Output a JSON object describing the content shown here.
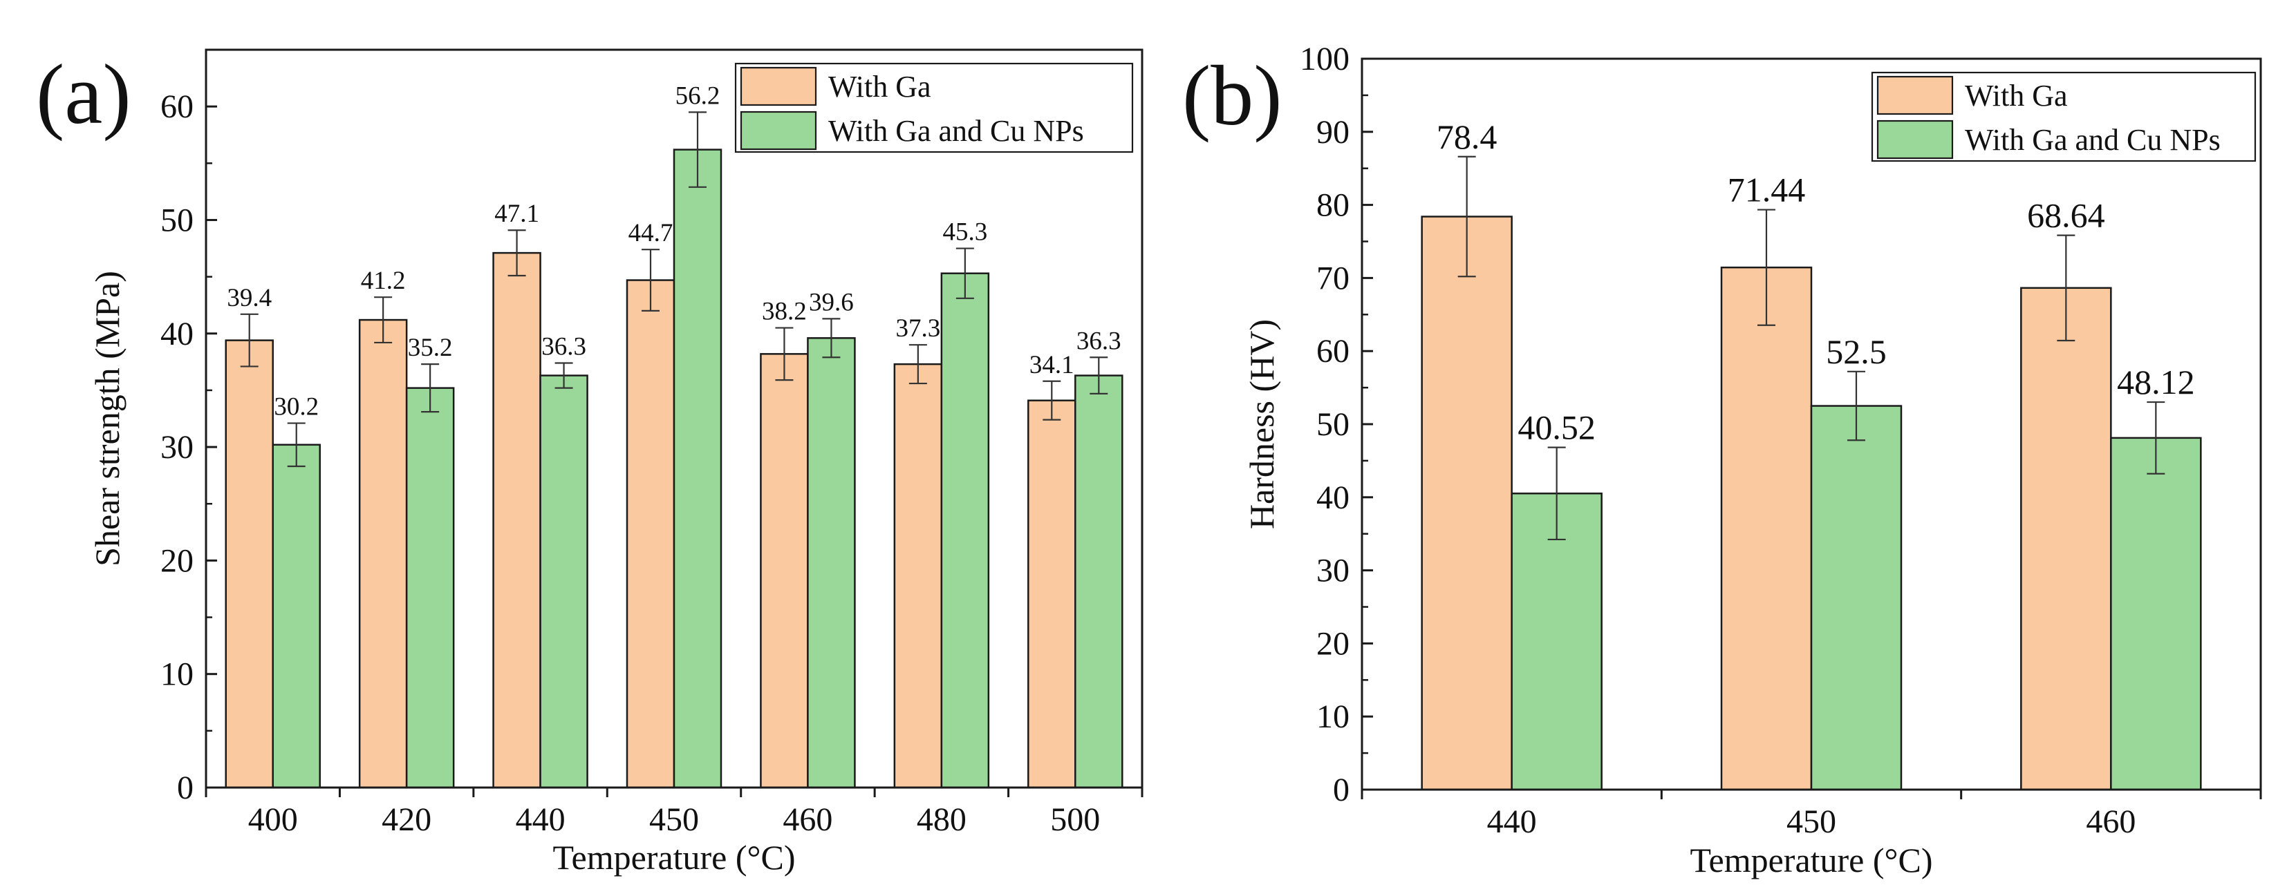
{
  "chart_data": [
    {
      "type": "bar",
      "panel_label": "(a)",
      "categories": [
        "400",
        "420",
        "440",
        "450",
        "460",
        "480",
        "500"
      ],
      "series": [
        {
          "name": "With Ga",
          "values": [
            39.4,
            41.2,
            47.1,
            44.7,
            38.2,
            37.3,
            34.1
          ],
          "labels": [
            "39.4",
            "41.2",
            "47.1",
            "44.7",
            "38.2",
            "37.3",
            "34.1"
          ],
          "errors": [
            2.3,
            2.0,
            2.0,
            2.7,
            2.3,
            1.7,
            1.7
          ],
          "color": "#fac99f"
        },
        {
          "name": "With Ga and Cu NPs",
          "values": [
            30.2,
            35.2,
            36.3,
            56.2,
            39.6,
            45.3,
            36.3
          ],
          "labels": [
            "30.2",
            "35.2",
            "36.3",
            "56.2",
            "39.6",
            "45.3",
            "36.3"
          ],
          "errors": [
            1.9,
            2.1,
            1.1,
            3.3,
            1.7,
            2.2,
            1.6
          ],
          "color": "#9ad899"
        }
      ],
      "xlabel": "Temperature (°C)",
      "ylabel": "Shear strength (MPa)",
      "ylim": [
        0,
        65
      ],
      "yticks": [
        0,
        10,
        20,
        30,
        40,
        50,
        60
      ],
      "ytick_labels": [
        "0",
        "10",
        "20",
        "30",
        "40",
        "50",
        "60"
      ],
      "legend_position": "top-right",
      "grid": false
    },
    {
      "type": "bar",
      "panel_label": "(b)",
      "categories": [
        "440",
        "450",
        "460"
      ],
      "series": [
        {
          "name": "With Ga",
          "values": [
            78.4,
            71.44,
            68.64
          ],
          "labels": [
            "78.4",
            "71.44",
            "68.64"
          ],
          "errors": [
            8.2,
            7.9,
            7.2
          ],
          "color": "#fac99f"
        },
        {
          "name": "With Ga and Cu NPs",
          "values": [
            40.52,
            52.5,
            48.12
          ],
          "labels": [
            "40.52",
            "52.5",
            "48.12"
          ],
          "errors": [
            6.3,
            4.7,
            4.9
          ],
          "color": "#9ad899"
        }
      ],
      "xlabel": "Temperature (°C)",
      "ylabel": "Hardness (HV)",
      "ylim": [
        0,
        100
      ],
      "yticks": [
        0,
        10,
        20,
        30,
        40,
        50,
        60,
        70,
        80,
        90,
        100
      ],
      "ytick_labels": [
        "0",
        "10",
        "20",
        "30",
        "40",
        "50",
        "60",
        "70",
        "80",
        "90",
        "100"
      ],
      "legend_position": "top-right",
      "grid": false
    }
  ]
}
